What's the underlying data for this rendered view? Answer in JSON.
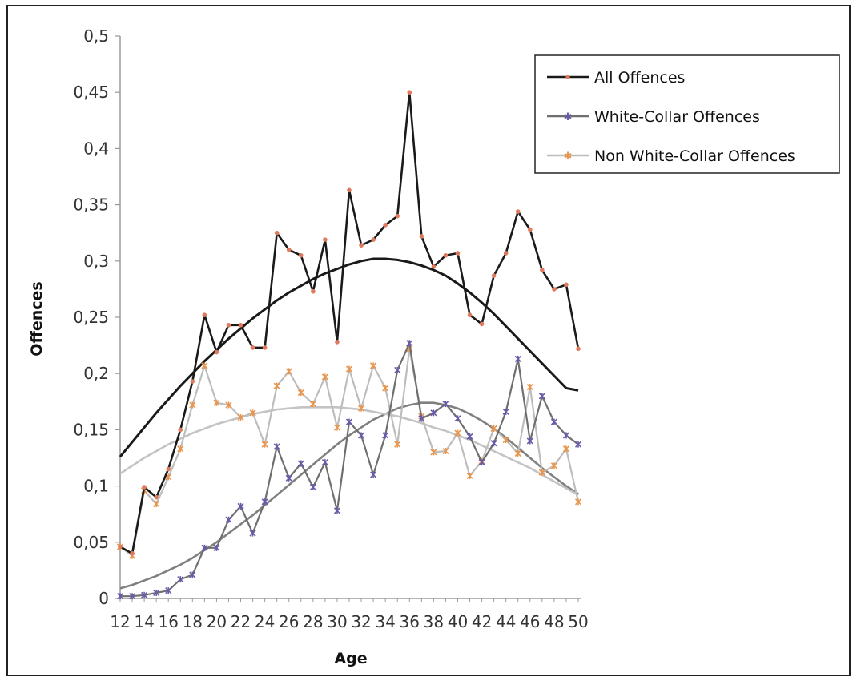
{
  "chart_data": {
    "type": "line",
    "xlabel": "Age",
    "ylabel": "Offences",
    "xlim": [
      12,
      50
    ],
    "ylim": [
      0,
      0.5
    ],
    "y_ticks": [
      0,
      0.05,
      0.1,
      0.15,
      0.2,
      0.25,
      0.3,
      0.35,
      0.4,
      0.45,
      0.5
    ],
    "y_tick_labels": [
      "0",
      "0,05",
      "0,1",
      "0,15",
      "0,2",
      "0,25",
      "0,3",
      "0,35",
      "0,4",
      "0,45",
      "0,5"
    ],
    "x_ticks": [
      12,
      14,
      16,
      18,
      20,
      22,
      24,
      26,
      28,
      30,
      32,
      34,
      36,
      38,
      40,
      42,
      44,
      46,
      48,
      50
    ],
    "x_tick_labels": [
      "12",
      "14",
      "16",
      "18",
      "20",
      "22",
      "24",
      "26",
      "28",
      "30",
      "32",
      "34",
      "36",
      "38",
      "40",
      "42",
      "44",
      "46",
      "48",
      "50"
    ],
    "grid": false,
    "legend_position": "top-right",
    "x": [
      12,
      13,
      14,
      15,
      16,
      17,
      18,
      19,
      20,
      21,
      22,
      23,
      24,
      25,
      26,
      27,
      28,
      29,
      30,
      31,
      32,
      33,
      34,
      35,
      36,
      37,
      38,
      39,
      40,
      41,
      42,
      43,
      44,
      45,
      46,
      47,
      48,
      49,
      50
    ],
    "series": [
      {
        "name": "All Offences",
        "color": "#1a1a1a",
        "marker_color": "#e07a5f",
        "marker": "dot",
        "values": [
          0.046,
          0.04,
          0.099,
          0.09,
          0.115,
          0.15,
          0.193,
          0.252,
          0.219,
          0.243,
          0.243,
          0.223,
          0.223,
          0.325,
          0.31,
          0.305,
          0.273,
          0.319,
          0.228,
          0.363,
          0.314,
          0.319,
          0.332,
          0.34,
          0.45,
          0.322,
          0.295,
          0.305,
          0.307,
          0.252,
          0.244,
          0.287,
          0.307,
          0.344,
          0.328,
          0.292,
          0.275,
          0.279,
          0.222
        ],
        "trend": [
          0.126,
          0.139,
          0.152,
          0.165,
          0.177,
          0.189,
          0.2,
          0.211,
          0.221,
          0.231,
          0.24,
          0.249,
          0.257,
          0.265,
          0.272,
          0.278,
          0.284,
          0.289,
          0.293,
          0.297,
          0.3,
          0.302,
          0.302,
          0.301,
          0.299,
          0.296,
          0.292,
          0.287,
          0.28,
          0.272,
          0.263,
          0.253,
          0.242,
          0.231,
          0.22,
          0.209,
          0.198,
          0.187,
          0.185
        ]
      },
      {
        "name": "White-Collar Offences",
        "color": "#6f6f6f",
        "marker_color": "#6a5ba8",
        "marker": "star",
        "values": [
          0.002,
          0.002,
          0.003,
          0.005,
          0.007,
          0.017,
          0.021,
          0.045,
          0.045,
          0.07,
          0.082,
          0.058,
          0.086,
          0.135,
          0.107,
          0.12,
          0.099,
          0.121,
          0.078,
          0.157,
          0.145,
          0.11,
          0.145,
          0.203,
          0.227,
          0.16,
          0.165,
          0.173,
          0.16,
          0.144,
          0.121,
          0.138,
          0.166,
          0.213,
          0.14,
          0.18,
          0.157,
          0.145,
          0.137
        ],
        "trend": [
          0.009,
          0.012,
          0.016,
          0.02,
          0.025,
          0.03,
          0.036,
          0.043,
          0.05,
          0.058,
          0.066,
          0.074,
          0.083,
          0.092,
          0.101,
          0.11,
          0.119,
          0.128,
          0.137,
          0.145,
          0.152,
          0.159,
          0.164,
          0.169,
          0.172,
          0.174,
          0.174,
          0.172,
          0.169,
          0.164,
          0.158,
          0.151,
          0.143,
          0.134,
          0.125,
          0.116,
          0.108,
          0.1,
          0.093
        ]
      },
      {
        "name": "Non White-Collar Offences",
        "color": "#bdbdbd",
        "marker_color": "#e8964f",
        "marker": "star",
        "values": [
          0.046,
          0.038,
          0.096,
          0.084,
          0.108,
          0.133,
          0.172,
          0.207,
          0.174,
          0.172,
          0.161,
          0.165,
          0.137,
          0.189,
          0.202,
          0.183,
          0.173,
          0.197,
          0.152,
          0.204,
          0.169,
          0.207,
          0.187,
          0.137,
          0.222,
          0.162,
          0.13,
          0.131,
          0.147,
          0.109,
          0.122,
          0.151,
          0.141,
          0.129,
          0.188,
          0.112,
          0.118,
          0.133,
          0.086
        ],
        "trend": [
          0.111,
          0.118,
          0.125,
          0.131,
          0.137,
          0.142,
          0.147,
          0.151,
          0.155,
          0.158,
          0.161,
          0.164,
          0.166,
          0.168,
          0.169,
          0.17,
          0.17,
          0.17,
          0.17,
          0.169,
          0.168,
          0.166,
          0.164,
          0.162,
          0.159,
          0.156,
          0.152,
          0.149,
          0.145,
          0.141,
          0.136,
          0.131,
          0.126,
          0.121,
          0.116,
          0.11,
          0.104,
          0.098,
          0.092
        ]
      }
    ]
  }
}
